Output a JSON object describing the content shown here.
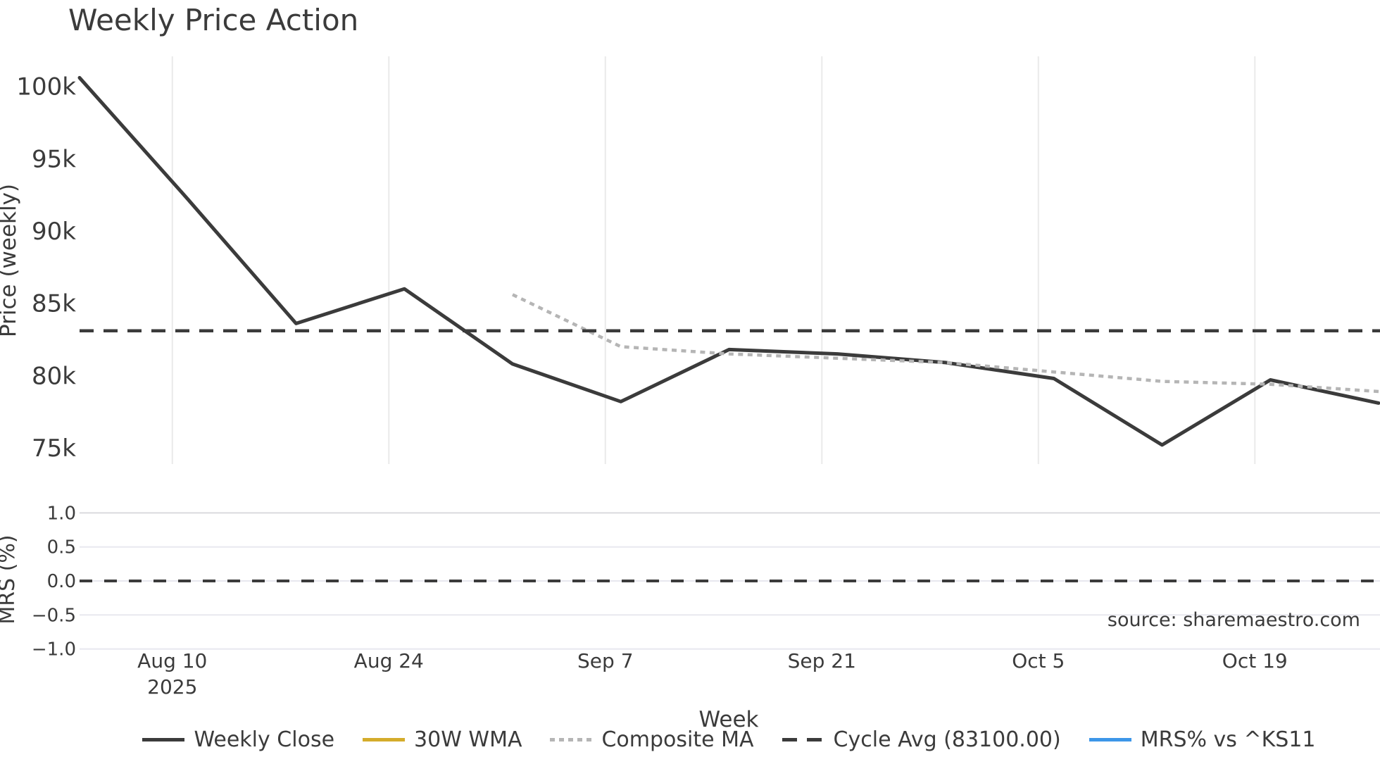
{
  "title": "Weekly Price Action",
  "source": "source: sharemaestro.com",
  "chart_data": {
    "type": "line",
    "title": "Weekly Price Action",
    "x": [
      "Aug 4",
      "Aug 11",
      "Aug 18",
      "Aug 25",
      "Sep 1",
      "Sep 8",
      "Sep 15",
      "Sep 22",
      "Sep 29",
      "Oct 6",
      "Oct 13",
      "Oct 20",
      "Oct 27"
    ],
    "x_days": [
      0,
      7,
      14,
      21,
      28,
      35,
      42,
      49,
      56,
      63,
      70,
      77,
      84
    ],
    "series": [
      {
        "name": "Weekly Close",
        "type": "line",
        "style": "solid",
        "color": "#3b3b3b",
        "width": 5,
        "values": [
          100600,
          92200,
          83600,
          86000,
          80800,
          78200,
          81800,
          81500,
          80900,
          79800,
          75200,
          79700,
          78100
        ]
      },
      {
        "name": "30W WMA",
        "type": "line",
        "style": "solid",
        "color": "#d4ac2b",
        "width": 5,
        "values": []
      },
      {
        "name": "Composite MA",
        "type": "line",
        "style": "dotted",
        "color": "#b5b5b5",
        "width": 4.5,
        "values": [
          null,
          null,
          null,
          null,
          85600,
          82000,
          81500,
          81200,
          80900,
          80250,
          79600,
          79400,
          78900
        ]
      },
      {
        "name": "Cycle Avg (83100.00)",
        "type": "hline",
        "style": "dashed",
        "color": "#3b3b3b",
        "width": 4.5,
        "value": 83100
      },
      {
        "name": "MRS% vs ^KS11",
        "type": "line",
        "style": "solid",
        "color": "#3d96e8",
        "width": 5,
        "values": []
      }
    ],
    "price_axis": {
      "label": "Price (weekly)",
      "ticks": [
        {
          "label": "100k",
          "value": 100000
        },
        {
          "label": "95k",
          "value": 95000
        },
        {
          "label": "90k",
          "value": 90000
        },
        {
          "label": "85k",
          "value": 85000
        },
        {
          "label": "80k",
          "value": 80000
        },
        {
          "label": "75k",
          "value": 75000
        }
      ],
      "range": [
        73900,
        102100
      ],
      "grid": "vertical-only"
    },
    "mrs_axis": {
      "label": "MRS (%)",
      "ticks": [
        {
          "label": "1.0",
          "value": 1.0
        },
        {
          "label": "0.5",
          "value": 0.5
        },
        {
          "label": "0.0",
          "value": 0.0
        },
        {
          "label": "−0.5",
          "value": -0.5
        },
        {
          "label": "−1.0",
          "value": -1.0
        }
      ],
      "zero_line_dashed": true,
      "range": [
        -1.1,
        1.14
      ],
      "grid": "horizontal-only"
    },
    "x_axis": {
      "label": "Week",
      "ticks": [
        {
          "label": "Aug 10",
          "sub": "2025",
          "day": 6
        },
        {
          "label": "Aug 24",
          "sub": "",
          "day": 20
        },
        {
          "label": "Sep 7",
          "sub": "",
          "day": 34
        },
        {
          "label": "Sep 21",
          "sub": "",
          "day": 48
        },
        {
          "label": "Oct 5",
          "sub": "",
          "day": 62
        },
        {
          "label": "Oct 19",
          "sub": "",
          "day": 76
        }
      ]
    },
    "legend_position": "bottom-center"
  },
  "legend": {
    "items": [
      {
        "label": "Weekly Close",
        "style": "solid",
        "color": "#3b3b3b"
      },
      {
        "label": "30W WMA",
        "style": "solid",
        "color": "#d4ac2b"
      },
      {
        "label": "Composite MA",
        "style": "dotted",
        "color": "#b5b5b5"
      },
      {
        "label": "Cycle Avg (83100.00)",
        "style": "dashed",
        "color": "#3b3b3b"
      },
      {
        "label": "MRS% vs ^KS11",
        "style": "solid",
        "color": "#3d96e8"
      }
    ]
  },
  "colors": {
    "text": "#3b3b3b",
    "grid": "#eaeaea",
    "mrs_grid": "#e8e8ef",
    "mrs_grid_top": "#dadade",
    "source_text": "#9a9a9a",
    "background": "#ffffff"
  }
}
